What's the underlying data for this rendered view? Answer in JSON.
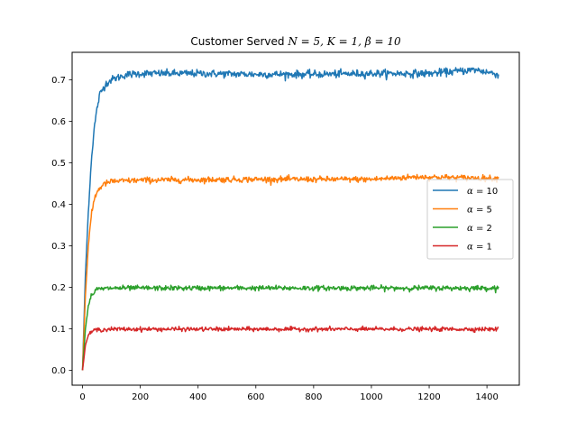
{
  "chart_data": {
    "type": "line",
    "title_prefix": "Customer Served ",
    "title_math": "N = 5, K = 1, β = 10",
    "xlabel": "",
    "ylabel": "",
    "xlim": [
      -36,
      1512
    ],
    "ylim": [
      -0.036,
      0.766
    ],
    "xticks": [
      0,
      200,
      400,
      600,
      800,
      1000,
      1200,
      1400
    ],
    "yticks": [
      0.0,
      0.1,
      0.2,
      0.3,
      0.4,
      0.5,
      0.6,
      0.7
    ],
    "ytick_labels": [
      "0.0",
      "0.1",
      "0.2",
      "0.3",
      "0.4",
      "0.5",
      "0.6",
      "0.7"
    ],
    "grid": false,
    "legend_position": "center-right",
    "x_end": 1440,
    "series": [
      {
        "name": "α = 10",
        "math_lhs": "α",
        "math_rhs": " = 10",
        "color": "#1f77b4",
        "plateau": 0.715,
        "rise_tau": 26,
        "noise": 0.0045,
        "points": [
          [
            0,
            0.0
          ],
          [
            10,
            0.23
          ],
          [
            20,
            0.38
          ],
          [
            30,
            0.5
          ],
          [
            40,
            0.58
          ],
          [
            50,
            0.63
          ],
          [
            60,
            0.665
          ],
          [
            80,
            0.69
          ],
          [
            100,
            0.7
          ],
          [
            150,
            0.712
          ],
          [
            200,
            0.715
          ],
          [
            400,
            0.715
          ],
          [
            600,
            0.713
          ],
          [
            800,
            0.713
          ],
          [
            1000,
            0.715
          ],
          [
            1200,
            0.715
          ],
          [
            1360,
            0.724
          ],
          [
            1440,
            0.713
          ]
        ]
      },
      {
        "name": "α = 5",
        "math_lhs": "α",
        "math_rhs": " = 5",
        "color": "#ff7f0e",
        "plateau": 0.458,
        "rise_tau": 20,
        "noise": 0.0035,
        "points": [
          [
            0,
            0.0
          ],
          [
            10,
            0.18
          ],
          [
            20,
            0.3
          ],
          [
            30,
            0.37
          ],
          [
            40,
            0.41
          ],
          [
            50,
            0.43
          ],
          [
            70,
            0.447
          ],
          [
            100,
            0.455
          ],
          [
            200,
            0.458
          ],
          [
            600,
            0.46
          ],
          [
            1000,
            0.46
          ],
          [
            1160,
            0.466
          ],
          [
            1440,
            0.462
          ]
        ]
      },
      {
        "name": "α = 2",
        "math_lhs": "α",
        "math_rhs": " = 2",
        "color": "#2ca02c",
        "plateau": 0.198,
        "rise_tau": 14,
        "noise": 0.003,
        "points": [
          [
            0,
            0.0
          ],
          [
            10,
            0.1
          ],
          [
            20,
            0.155
          ],
          [
            30,
            0.18
          ],
          [
            50,
            0.195
          ],
          [
            100,
            0.198
          ],
          [
            600,
            0.198
          ],
          [
            1000,
            0.198
          ],
          [
            1440,
            0.198
          ]
        ]
      },
      {
        "name": "α = 1",
        "math_lhs": "α",
        "math_rhs": " = 1",
        "color": "#d62728",
        "plateau": 0.099,
        "rise_tau": 12,
        "noise": 0.0025,
        "points": [
          [
            0,
            0.0
          ],
          [
            10,
            0.06
          ],
          [
            20,
            0.085
          ],
          [
            40,
            0.097
          ],
          [
            100,
            0.099
          ],
          [
            600,
            0.099
          ],
          [
            1000,
            0.099
          ],
          [
            1440,
            0.099
          ]
        ]
      }
    ]
  }
}
